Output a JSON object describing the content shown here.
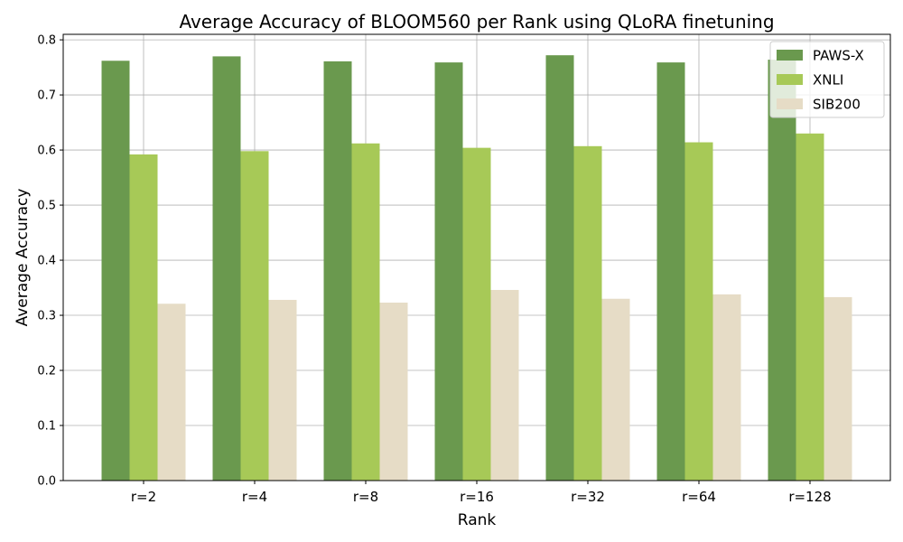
{
  "chart_data": {
    "type": "bar",
    "title": "Average Accuracy of BLOOM560 per Rank using QLoRA finetuning",
    "xlabel": "Rank",
    "ylabel": "Average Accuracy",
    "categories": [
      "r=2",
      "r=4",
      "r=8",
      "r=16",
      "r=32",
      "r=64",
      "r=128"
    ],
    "series": [
      {
        "name": "PAWS-X",
        "color": "#6a994e",
        "values": [
          0.762,
          0.77,
          0.761,
          0.759,
          0.772,
          0.759,
          0.764
        ]
      },
      {
        "name": "XNLI",
        "color": "#a7c957",
        "values": [
          0.592,
          0.598,
          0.612,
          0.604,
          0.607,
          0.614,
          0.63
        ]
      },
      {
        "name": "SIB200",
        "color": "#e6dcc6",
        "values": [
          0.321,
          0.328,
          0.323,
          0.346,
          0.33,
          0.338,
          0.333
        ]
      }
    ],
    "ylim": [
      0,
      0.81
    ],
    "yticks": [
      "0.0",
      "0.1",
      "0.2",
      "0.3",
      "0.4",
      "0.5",
      "0.6",
      "0.7",
      "0.8"
    ],
    "grid": true,
    "legend_position": "top-right"
  }
}
